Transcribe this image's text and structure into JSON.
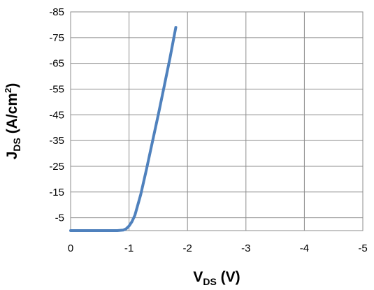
{
  "chart_data": {
    "type": "line",
    "title": "",
    "xlabel": {
      "main": "V",
      "sub": "DS",
      "rest": " (V)"
    },
    "ylabel": {
      "main": "J",
      "sub": "DS",
      "rest": " (A/cm",
      "sup": "2",
      "end": ")"
    },
    "xlim": [
      0,
      -5
    ],
    "ylim": [
      0,
      -85
    ],
    "x_ticks": [
      0,
      -1,
      -2,
      -3,
      -4,
      -5
    ],
    "y_ticks": [
      -5,
      -15,
      -25,
      -35,
      -45,
      -55,
      -65,
      -75,
      -85
    ],
    "grid": true,
    "legend": "none",
    "series": [
      {
        "color": "#4f81bd",
        "x": [
          0,
          -0.5,
          -0.8,
          -0.9,
          -0.95,
          -1.0,
          -1.05,
          -1.1,
          -1.2,
          -1.3,
          -1.4,
          -1.5,
          -1.6,
          -1.7,
          -1.8
        ],
        "y": [
          0,
          0,
          0,
          -0.2,
          -0.7,
          -1.8,
          -3.5,
          -6,
          -14,
          -24,
          -34.5,
          -45,
          -56,
          -67,
          -79
        ]
      }
    ]
  }
}
